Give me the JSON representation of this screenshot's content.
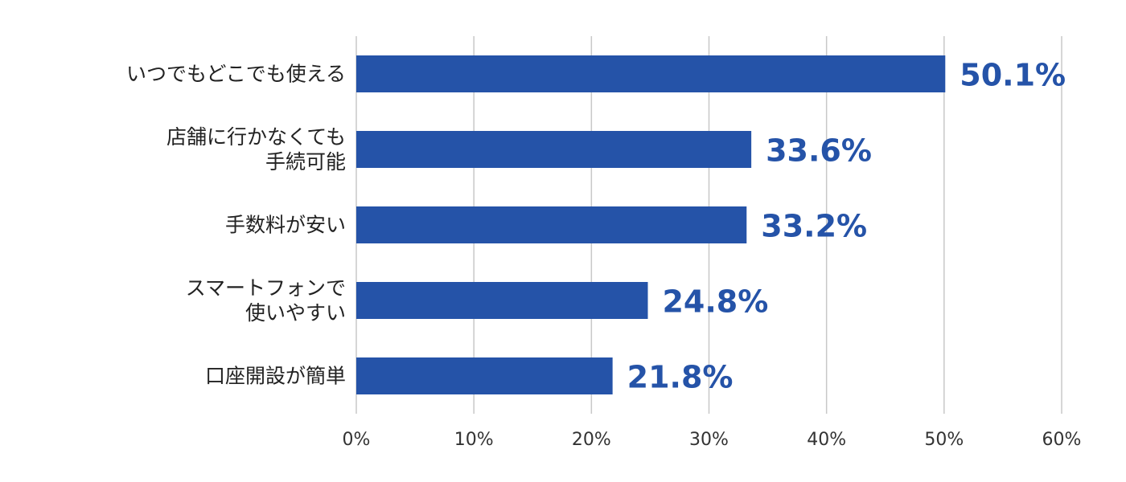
{
  "chart_data": {
    "type": "bar",
    "orientation": "horizontal",
    "categories": [
      "いつでもどこでも使える",
      "店舗に行かなくても\n手続可能",
      "手数料が安い",
      "スマートフォンで\n使いやすい",
      "口座開設が簡単"
    ],
    "values": [
      50.1,
      33.6,
      33.2,
      24.8,
      21.8
    ],
    "value_labels": [
      "50.1%",
      "33.6%",
      "33.2%",
      "24.8%",
      "21.8%"
    ],
    "color": "#2553a8",
    "xlim": [
      0,
      60
    ],
    "xticks": [
      {
        "value": 0,
        "label": "0%"
      },
      {
        "value": 10,
        "label": "10%"
      },
      {
        "value": 20,
        "label": "20%"
      },
      {
        "value": 30,
        "label": "30%"
      },
      {
        "value": 40,
        "label": "40%"
      },
      {
        "value": 50,
        "label": "50%"
      },
      {
        "value": 60,
        "label": "60%"
      }
    ],
    "grid": true
  }
}
